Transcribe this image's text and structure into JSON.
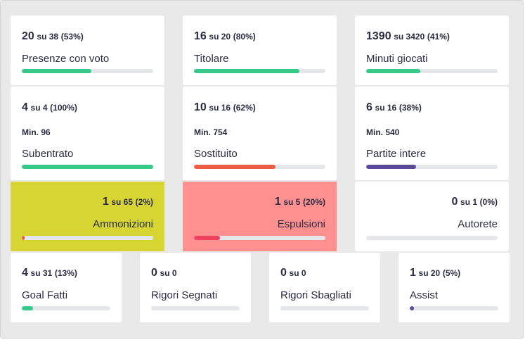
{
  "colors": {
    "green": "#35c98a",
    "red": "#ee5c44",
    "purple": "#5b4a9c",
    "red_bar": "#f04060",
    "yellow_bg": "#d6d534",
    "pink_bg": "#ff9090",
    "track": "#e4e6ea"
  },
  "cards": [
    {
      "value": "20",
      "of": "su 38",
      "pct": "(53%)",
      "label": "Presenze con voto",
      "fill": 0.53,
      "color": "#35c98a"
    },
    {
      "value": "16",
      "of": "su 20",
      "pct": "(80%)",
      "label": "Titolare",
      "fill": 0.8,
      "color": "#35c98a"
    },
    {
      "value": "1390",
      "of": "su 3420",
      "pct": "(41%)",
      "label": "Minuti giocati",
      "fill": 0.41,
      "color": "#35c98a"
    },
    {
      "value": "4",
      "of": "su 4",
      "pct": "(100%)",
      "min": "Min. 96",
      "label": "Subentrato",
      "fill": 1.0,
      "color": "#35c98a"
    },
    {
      "value": "10",
      "of": "su 16",
      "pct": "(62%)",
      "min": "Min. 754",
      "label": "Sostituito",
      "fill": 0.62,
      "color": "#ee5c44"
    },
    {
      "value": "6",
      "of": "su 16",
      "pct": "(38%)",
      "min": "Min. 540",
      "label": "Partite intere",
      "fill": 0.38,
      "color": "#5b4a9c"
    },
    {
      "value": "1",
      "of": "su 65",
      "pct": "(2%)",
      "label": "Ammonizioni",
      "fill": 0.02,
      "color": "#ee5c44",
      "bg": "#d6d534"
    },
    {
      "value": "1",
      "of": "su 5",
      "pct": "(20%)",
      "label": "Espulsioni",
      "fill": 0.2,
      "color": "#f04060",
      "bg": "#ff9090"
    },
    {
      "value": "0",
      "of": "su 1",
      "pct": "(0%)",
      "label": "Autorete",
      "fill": 0.0,
      "color": "#35c98a"
    },
    {
      "value": "4",
      "of": "su 31",
      "pct": "(13%)",
      "label": "Goal Fatti",
      "fill": 0.13,
      "color": "#35c98a"
    },
    {
      "value": "0",
      "of": "su 0",
      "pct": "",
      "label": "Rigori Segnati",
      "fill": 0.0,
      "color": "#35c98a"
    },
    {
      "value": "0",
      "of": "su 0",
      "pct": "",
      "label": "Rigori Sbagliati",
      "fill": 0.0,
      "color": "#35c98a"
    },
    {
      "value": "1",
      "of": "su 20",
      "pct": "(5%)",
      "label": "Assist",
      "fill": 0.05,
      "color": "#5b4a9c"
    }
  ]
}
